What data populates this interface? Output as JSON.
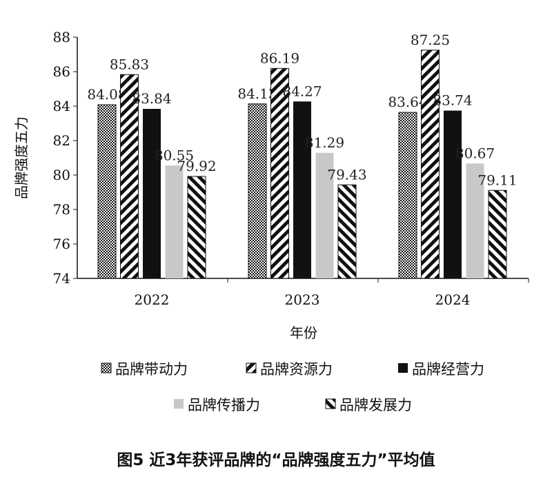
{
  "chart_data": {
    "type": "bar",
    "title": "",
    "xlabel": "年份",
    "ylabel": "品牌强度五力",
    "ylim": [
      74,
      88
    ],
    "yticks": [
      74,
      76,
      78,
      80,
      82,
      84,
      86,
      88
    ],
    "categories": [
      "2022",
      "2023",
      "2024"
    ],
    "grid": false,
    "legend_position": "bottom",
    "series": [
      {
        "name": "品牌带动力",
        "values": [
          84.08,
          84.13,
          83.64
        ],
        "pattern": "dots",
        "color": "#111111"
      },
      {
        "name": "品牌资源力",
        "values": [
          85.83,
          86.19,
          87.25
        ],
        "pattern": "forward-stripes",
        "color": "#111111"
      },
      {
        "name": "品牌经营力",
        "values": [
          83.84,
          84.27,
          83.74
        ],
        "pattern": "solid",
        "color": "#111111"
      },
      {
        "name": "品牌传播力",
        "values": [
          80.55,
          81.29,
          80.67
        ],
        "pattern": "solid",
        "color": "#c8c8c8"
      },
      {
        "name": "品牌发展力",
        "values": [
          79.92,
          79.43,
          79.11
        ],
        "pattern": "back-stripes",
        "color": "#111111"
      }
    ]
  },
  "caption": "图5  近3年获评品牌的“品牌强度五力”平均值"
}
